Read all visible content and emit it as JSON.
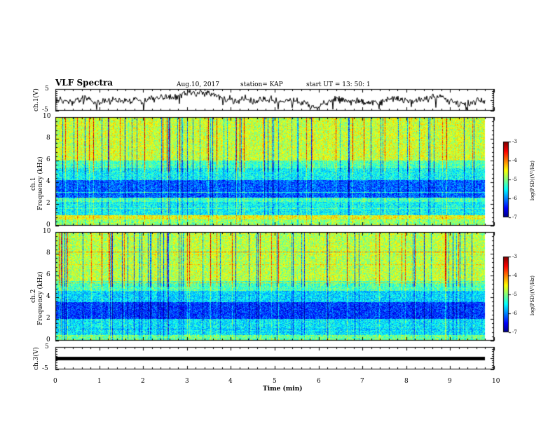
{
  "header": {
    "title": "VLF Spectra",
    "date": "Aug.10, 2017",
    "station": "station= KAP",
    "start": "start  UT  =   13: 50: 1"
  },
  "chart_data": [
    {
      "type": "line",
      "panel": "ch1-waveform",
      "ylabel": "ch.1(V)",
      "ylim": [
        -5,
        5
      ],
      "yticks": [
        "5",
        "-5"
      ],
      "xlim": [
        0,
        10
      ],
      "color": "#000000"
    },
    {
      "type": "heatmap",
      "panel": "ch1-spectrogram",
      "ylabel": "ch.1\nFrequency (kHz)",
      "ylabel_line1": "ch.1",
      "ylabel_line2": "Frequency (kHz)",
      "ylim": [
        0,
        10
      ],
      "yticks": [
        "0",
        "2",
        "4",
        "6",
        "8",
        "10"
      ],
      "xlim": [
        0,
        9.8
      ],
      "colorbar": {
        "range": [
          -7,
          -3
        ],
        "ticks": [
          "-3",
          "-4",
          "-5",
          "-6",
          "-7"
        ],
        "label": "log(PSD)(V²/Hz)"
      }
    },
    {
      "type": "heatmap",
      "panel": "ch2-spectrogram",
      "ylabel_line1": "ch.2",
      "ylabel_line2": "Frequency (kHz)",
      "ylim": [
        0,
        10
      ],
      "yticks": [
        "0",
        "2",
        "4",
        "6",
        "8",
        "10"
      ],
      "xlim": [
        0,
        9.8
      ],
      "colorbar": {
        "range": [
          -7,
          -3
        ],
        "ticks": [
          "-3",
          "-4",
          "-5",
          "-6",
          "-7"
        ],
        "label": "log(PSD)(V²/Hz)"
      }
    },
    {
      "type": "line",
      "panel": "ch3-waveform",
      "ylabel": "ch.3(V)",
      "ylim": [
        -5,
        5
      ],
      "yticks": [
        "5",
        "-5"
      ],
      "xlim": [
        0,
        9.8
      ],
      "values_constant": 0,
      "color": "#000000"
    }
  ],
  "xaxis": {
    "label": "Time  (min)",
    "ticks": [
      "0",
      "1",
      "2",
      "3",
      "4",
      "5",
      "6",
      "7",
      "8",
      "9",
      "10"
    ],
    "range": [
      0,
      10
    ]
  }
}
